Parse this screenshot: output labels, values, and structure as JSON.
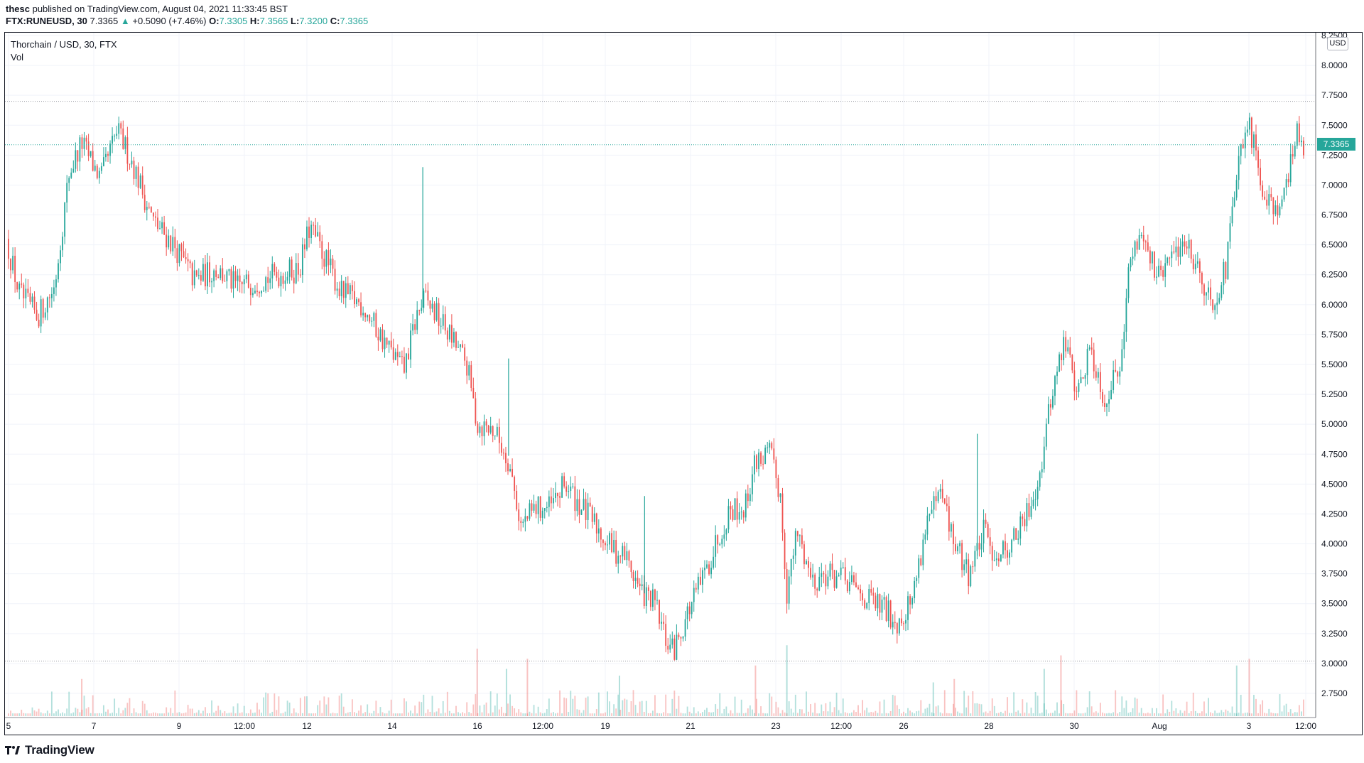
{
  "header": {
    "author": "thesc",
    "published_text": "published on TradingView.com, August 04, 2021 11:33:45 BST",
    "symbol": "FTX:RUNEUSD, 30",
    "last": "7.3365",
    "change": "+0.5090 (+7.46%)",
    "o_label": "O:",
    "o": "7.3305",
    "h_label": "H:",
    "h": "7.3565",
    "l_label": "L:",
    "l": "7.3200",
    "c_label": "C:",
    "c": "7.3365"
  },
  "legend": {
    "title": "Thorchain / USD, 30, FTX",
    "volume": "Vol"
  },
  "price_axis": {
    "currency": "USD",
    "current_price_label": "7.3365"
  },
  "footer": {
    "brand": "TradingView"
  },
  "colors": {
    "up": "#26a69a",
    "down": "#ef5350",
    "grid": "#f0f3fa"
  },
  "chart_data": {
    "type": "candlestick",
    "interval": "30",
    "y_ticks": [
      "8.2500",
      "8.0000",
      "7.7500",
      "7.5000",
      "7.2500",
      "7.0000",
      "6.7500",
      "6.5000",
      "6.2500",
      "6.0000",
      "5.7500",
      "5.5000",
      "5.2500",
      "5.0000",
      "4.7500",
      "4.5000",
      "4.2500",
      "4.0000",
      "3.7500",
      "3.5000",
      "3.2500",
      "3.0000",
      "2.7500"
    ],
    "x_ticks": [
      "5",
      "7",
      "9",
      "12:00",
      "12",
      "14",
      "16",
      "12:00",
      "19",
      "21",
      "23",
      "12:00",
      "26",
      "28",
      "30",
      "Aug",
      "3",
      "12:00"
    ],
    "current_price": 7.3365,
    "high_line": 7.7,
    "low_line": 3.02,
    "price_path": [
      {
        "t": 0,
        "p": 6.55
      },
      {
        "t": 0.6,
        "p": 6.1
      },
      {
        "t": 1.5,
        "p": 5.9
      },
      {
        "t": 2.3,
        "p": 6.15
      },
      {
        "t": 3.0,
        "p": 7.1
      },
      {
        "t": 3.6,
        "p": 7.35
      },
      {
        "t": 4.5,
        "p": 7.05
      },
      {
        "t": 5.3,
        "p": 7.45
      },
      {
        "t": 6.0,
        "p": 7.2
      },
      {
        "t": 7.0,
        "p": 6.7
      },
      {
        "t": 8.0,
        "p": 6.5
      },
      {
        "t": 9.0,
        "p": 6.2
      },
      {
        "t": 10,
        "p": 6.3
      },
      {
        "t": 11,
        "p": 6.15
      },
      {
        "t": 12,
        "p": 6.2
      },
      {
        "t": 13,
        "p": 6.25
      },
      {
        "t": 14,
        "p": 6.3
      },
      {
        "t": 14.5,
        "p": 6.65
      },
      {
        "t": 15.2,
        "p": 6.4
      },
      {
        "t": 16,
        "p": 6.1
      },
      {
        "t": 17,
        "p": 6.0
      },
      {
        "t": 18,
        "p": 5.7
      },
      {
        "t": 19,
        "p": 5.45
      },
      {
        "t": 19.6,
        "p": 5.9
      },
      {
        "t": 20,
        "p": 6.05
      },
      {
        "t": 21,
        "p": 5.8
      },
      {
        "t": 22,
        "p": 5.5
      },
      {
        "t": 22.5,
        "p": 5.0
      },
      {
        "t": 23.3,
        "p": 4.95
      },
      {
        "t": 24,
        "p": 4.7
      },
      {
        "t": 24.6,
        "p": 4.15
      },
      {
        "t": 25.3,
        "p": 4.3
      },
      {
        "t": 26,
        "p": 4.3
      },
      {
        "t": 26.7,
        "p": 4.5
      },
      {
        "t": 27.5,
        "p": 4.3
      },
      {
        "t": 28.2,
        "p": 4.15
      },
      {
        "t": 29,
        "p": 3.95
      },
      {
        "t": 29.6,
        "p": 3.9
      },
      {
        "t": 30.3,
        "p": 3.6
      },
      {
        "t": 31,
        "p": 3.5
      },
      {
        "t": 31.5,
        "p": 3.2
      },
      {
        "t": 31.9,
        "p": 3.1
      },
      {
        "t": 32.5,
        "p": 3.4
      },
      {
        "t": 33.5,
        "p": 3.8
      },
      {
        "t": 34,
        "p": 4.05
      },
      {
        "t": 34.6,
        "p": 4.3
      },
      {
        "t": 35.3,
        "p": 4.3
      },
      {
        "t": 35.8,
        "p": 4.7
      },
      {
        "t": 36.5,
        "p": 4.75
      },
      {
        "t": 37,
        "p": 4.4
      },
      {
        "t": 37.3,
        "p": 3.6
      },
      {
        "t": 37.8,
        "p": 4.1
      },
      {
        "t": 38.5,
        "p": 3.7
      },
      {
        "t": 39.2,
        "p": 3.75
      },
      {
        "t": 40,
        "p": 3.7
      },
      {
        "t": 41,
        "p": 3.55
      },
      {
        "t": 42,
        "p": 3.45
      },
      {
        "t": 42.6,
        "p": 3.35
      },
      {
        "t": 43.3,
        "p": 3.55
      },
      {
        "t": 44,
        "p": 4.2
      },
      {
        "t": 44.7,
        "p": 4.4
      },
      {
        "t": 45.3,
        "p": 4.0
      },
      {
        "t": 46,
        "p": 3.75
      },
      {
        "t": 46.7,
        "p": 4.1
      },
      {
        "t": 47.3,
        "p": 3.9
      },
      {
        "t": 48,
        "p": 4.0
      },
      {
        "t": 48.7,
        "p": 4.2
      },
      {
        "t": 49.4,
        "p": 4.6
      },
      {
        "t": 50,
        "p": 5.3
      },
      {
        "t": 50.6,
        "p": 5.7
      },
      {
        "t": 51.2,
        "p": 5.25
      },
      {
        "t": 51.8,
        "p": 5.65
      },
      {
        "t": 52.5,
        "p": 5.2
      },
      {
        "t": 53.2,
        "p": 5.5
      },
      {
        "t": 53.7,
        "p": 6.35
      },
      {
        "t": 54.3,
        "p": 6.65
      },
      {
        "t": 55,
        "p": 6.2
      },
      {
        "t": 55.7,
        "p": 6.4
      },
      {
        "t": 56.3,
        "p": 6.55
      },
      {
        "t": 57,
        "p": 6.3
      },
      {
        "t": 57.6,
        "p": 6.0
      },
      {
        "t": 58.3,
        "p": 6.3
      },
      {
        "t": 58.8,
        "p": 7.1
      },
      {
        "t": 59.4,
        "p": 7.5
      },
      {
        "t": 60,
        "p": 7.0
      },
      {
        "t": 60.7,
        "p": 6.8
      },
      {
        "t": 61.2,
        "p": 7.0
      },
      {
        "t": 61.7,
        "p": 7.45
      },
      {
        "t": 62.0,
        "p": 7.34
      }
    ],
    "spikes": [
      {
        "t": 19.8,
        "high": 7.15
      },
      {
        "t": 23.9,
        "high": 5.55
      },
      {
        "t": 30.4,
        "high": 4.4
      },
      {
        "t": 46.3,
        "high": 4.92
      }
    ],
    "volume_spikes": [
      {
        "t": 22.4,
        "v": 1.0
      },
      {
        "t": 23.8,
        "v": 0.7
      },
      {
        "t": 24.8,
        "v": 0.85
      },
      {
        "t": 29.2,
        "v": 0.6
      },
      {
        "t": 35.7,
        "v": 0.75
      },
      {
        "t": 37.2,
        "v": 1.05
      },
      {
        "t": 3.5,
        "v": 0.55
      },
      {
        "t": 44.2,
        "v": 0.5
      },
      {
        "t": 45.2,
        "v": 0.55
      },
      {
        "t": 49.5,
        "v": 0.7
      },
      {
        "t": 50.3,
        "v": 0.9
      },
      {
        "t": 58.7,
        "v": 0.75
      },
      {
        "t": 59.3,
        "v": 0.85
      }
    ]
  }
}
